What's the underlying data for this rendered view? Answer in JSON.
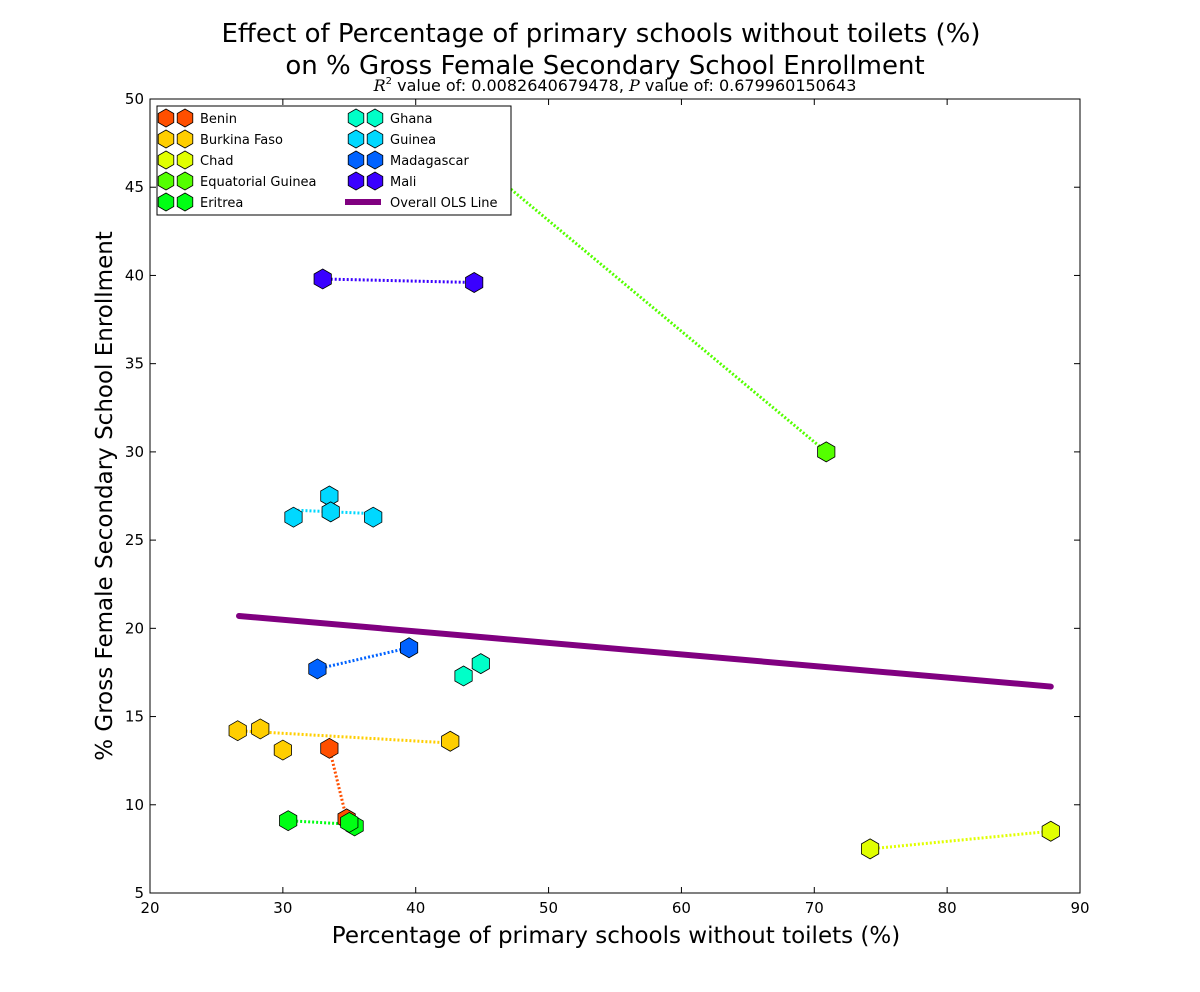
{
  "chart_data": {
    "type": "scatter",
    "title_line1": "Effect of Percentage of primary schools without toilets (%)",
    "title_line2": "on % Gross Female Secondary School Enrollment",
    "subtitle": {
      "r2_symbol": "R",
      "r2_exponent": "2",
      "r2_text": " value of: 0.0082640679478, ",
      "p_symbol": "P",
      "p_text": " value of: 0.679960150643"
    },
    "xlabel": "Percentage of primary schools without toilets (%)",
    "ylabel": "% Gross Female Secondary School Enrollment",
    "xlim": [
      20,
      90
    ],
    "ylim": [
      5,
      50
    ],
    "xticks": [
      "20",
      "30",
      "40",
      "50",
      "60",
      "70",
      "80",
      "90"
    ],
    "yticks": [
      "5",
      "10",
      "15",
      "20",
      "25",
      "30",
      "35",
      "40",
      "45",
      "50"
    ],
    "legend_position": "top-left",
    "series": [
      {
        "name": "Benin",
        "color": "#ff4f00",
        "points": [
          [
            33.5,
            13.2
          ],
          [
            34.8,
            9.2
          ]
        ],
        "line_segments": [
          [
            [
              33.5,
              13.2
            ],
            [
              34.8,
              9.2
            ]
          ]
        ]
      },
      {
        "name": "Burkina Faso",
        "color": "#ffce00",
        "points": [
          [
            26.6,
            14.2
          ],
          [
            28.3,
            14.3
          ],
          [
            30.0,
            13.1
          ],
          [
            42.6,
            13.6
          ]
        ],
        "line_segments": [
          [
            [
              26.6,
              14.2
            ],
            [
              42.6,
              13.5
            ]
          ]
        ]
      },
      {
        "name": "Chad",
        "color": "#e1ff00",
        "points": [
          [
            74.2,
            7.5
          ],
          [
            87.8,
            8.5
          ]
        ],
        "line_segments": [
          [
            [
              74.2,
              7.5
            ],
            [
              87.8,
              8.5
            ]
          ]
        ]
      },
      {
        "name": "Equatorial Guinea",
        "color": "#54ff00",
        "points": [
          [
            70.9,
            30.0
          ]
        ],
        "line_segments": [
          [
            [
              43.0,
              47.5
            ],
            [
              70.9,
              30.0
            ]
          ]
        ]
      },
      {
        "name": "Eritrea",
        "color": "#00ff14",
        "points": [
          [
            30.4,
            9.1
          ],
          [
            35.4,
            8.8
          ],
          [
            35.0,
            9.0
          ]
        ],
        "line_segments": [
          [
            [
              30.4,
              9.1
            ],
            [
              35.0,
              8.9
            ]
          ]
        ]
      },
      {
        "name": "Ghana",
        "color": "#00ffc8",
        "points": [
          [
            43.6,
            17.3
          ],
          [
            44.9,
            18.0
          ]
        ],
        "line_segments": []
      },
      {
        "name": "Guinea",
        "color": "#00d8ff",
        "points": [
          [
            30.8,
            26.3
          ],
          [
            33.5,
            27.5
          ],
          [
            33.6,
            26.6
          ],
          [
            36.8,
            26.3
          ]
        ],
        "line_segments": [
          [
            [
              30.8,
              26.7
            ],
            [
              36.8,
              26.5
            ]
          ]
        ]
      },
      {
        "name": "Madagascar",
        "color": "#0062ff",
        "points": [
          [
            32.6,
            17.7
          ],
          [
            39.5,
            18.9
          ]
        ],
        "line_segments": [
          [
            [
              32.6,
              17.7
            ],
            [
              39.5,
              18.9
            ]
          ]
        ]
      },
      {
        "name": "Mali",
        "color": "#3a00ff",
        "points": [
          [
            33.0,
            39.8
          ],
          [
            44.4,
            39.6
          ]
        ],
        "line_segments": [
          [
            [
              33.0,
              39.8
            ],
            [
              44.4,
              39.6
            ]
          ]
        ]
      }
    ],
    "ols_line": {
      "name": "Overall OLS Line",
      "color": "#800080",
      "x": [
        26.7,
        87.8
      ],
      "y": [
        20.7,
        16.7
      ]
    }
  }
}
